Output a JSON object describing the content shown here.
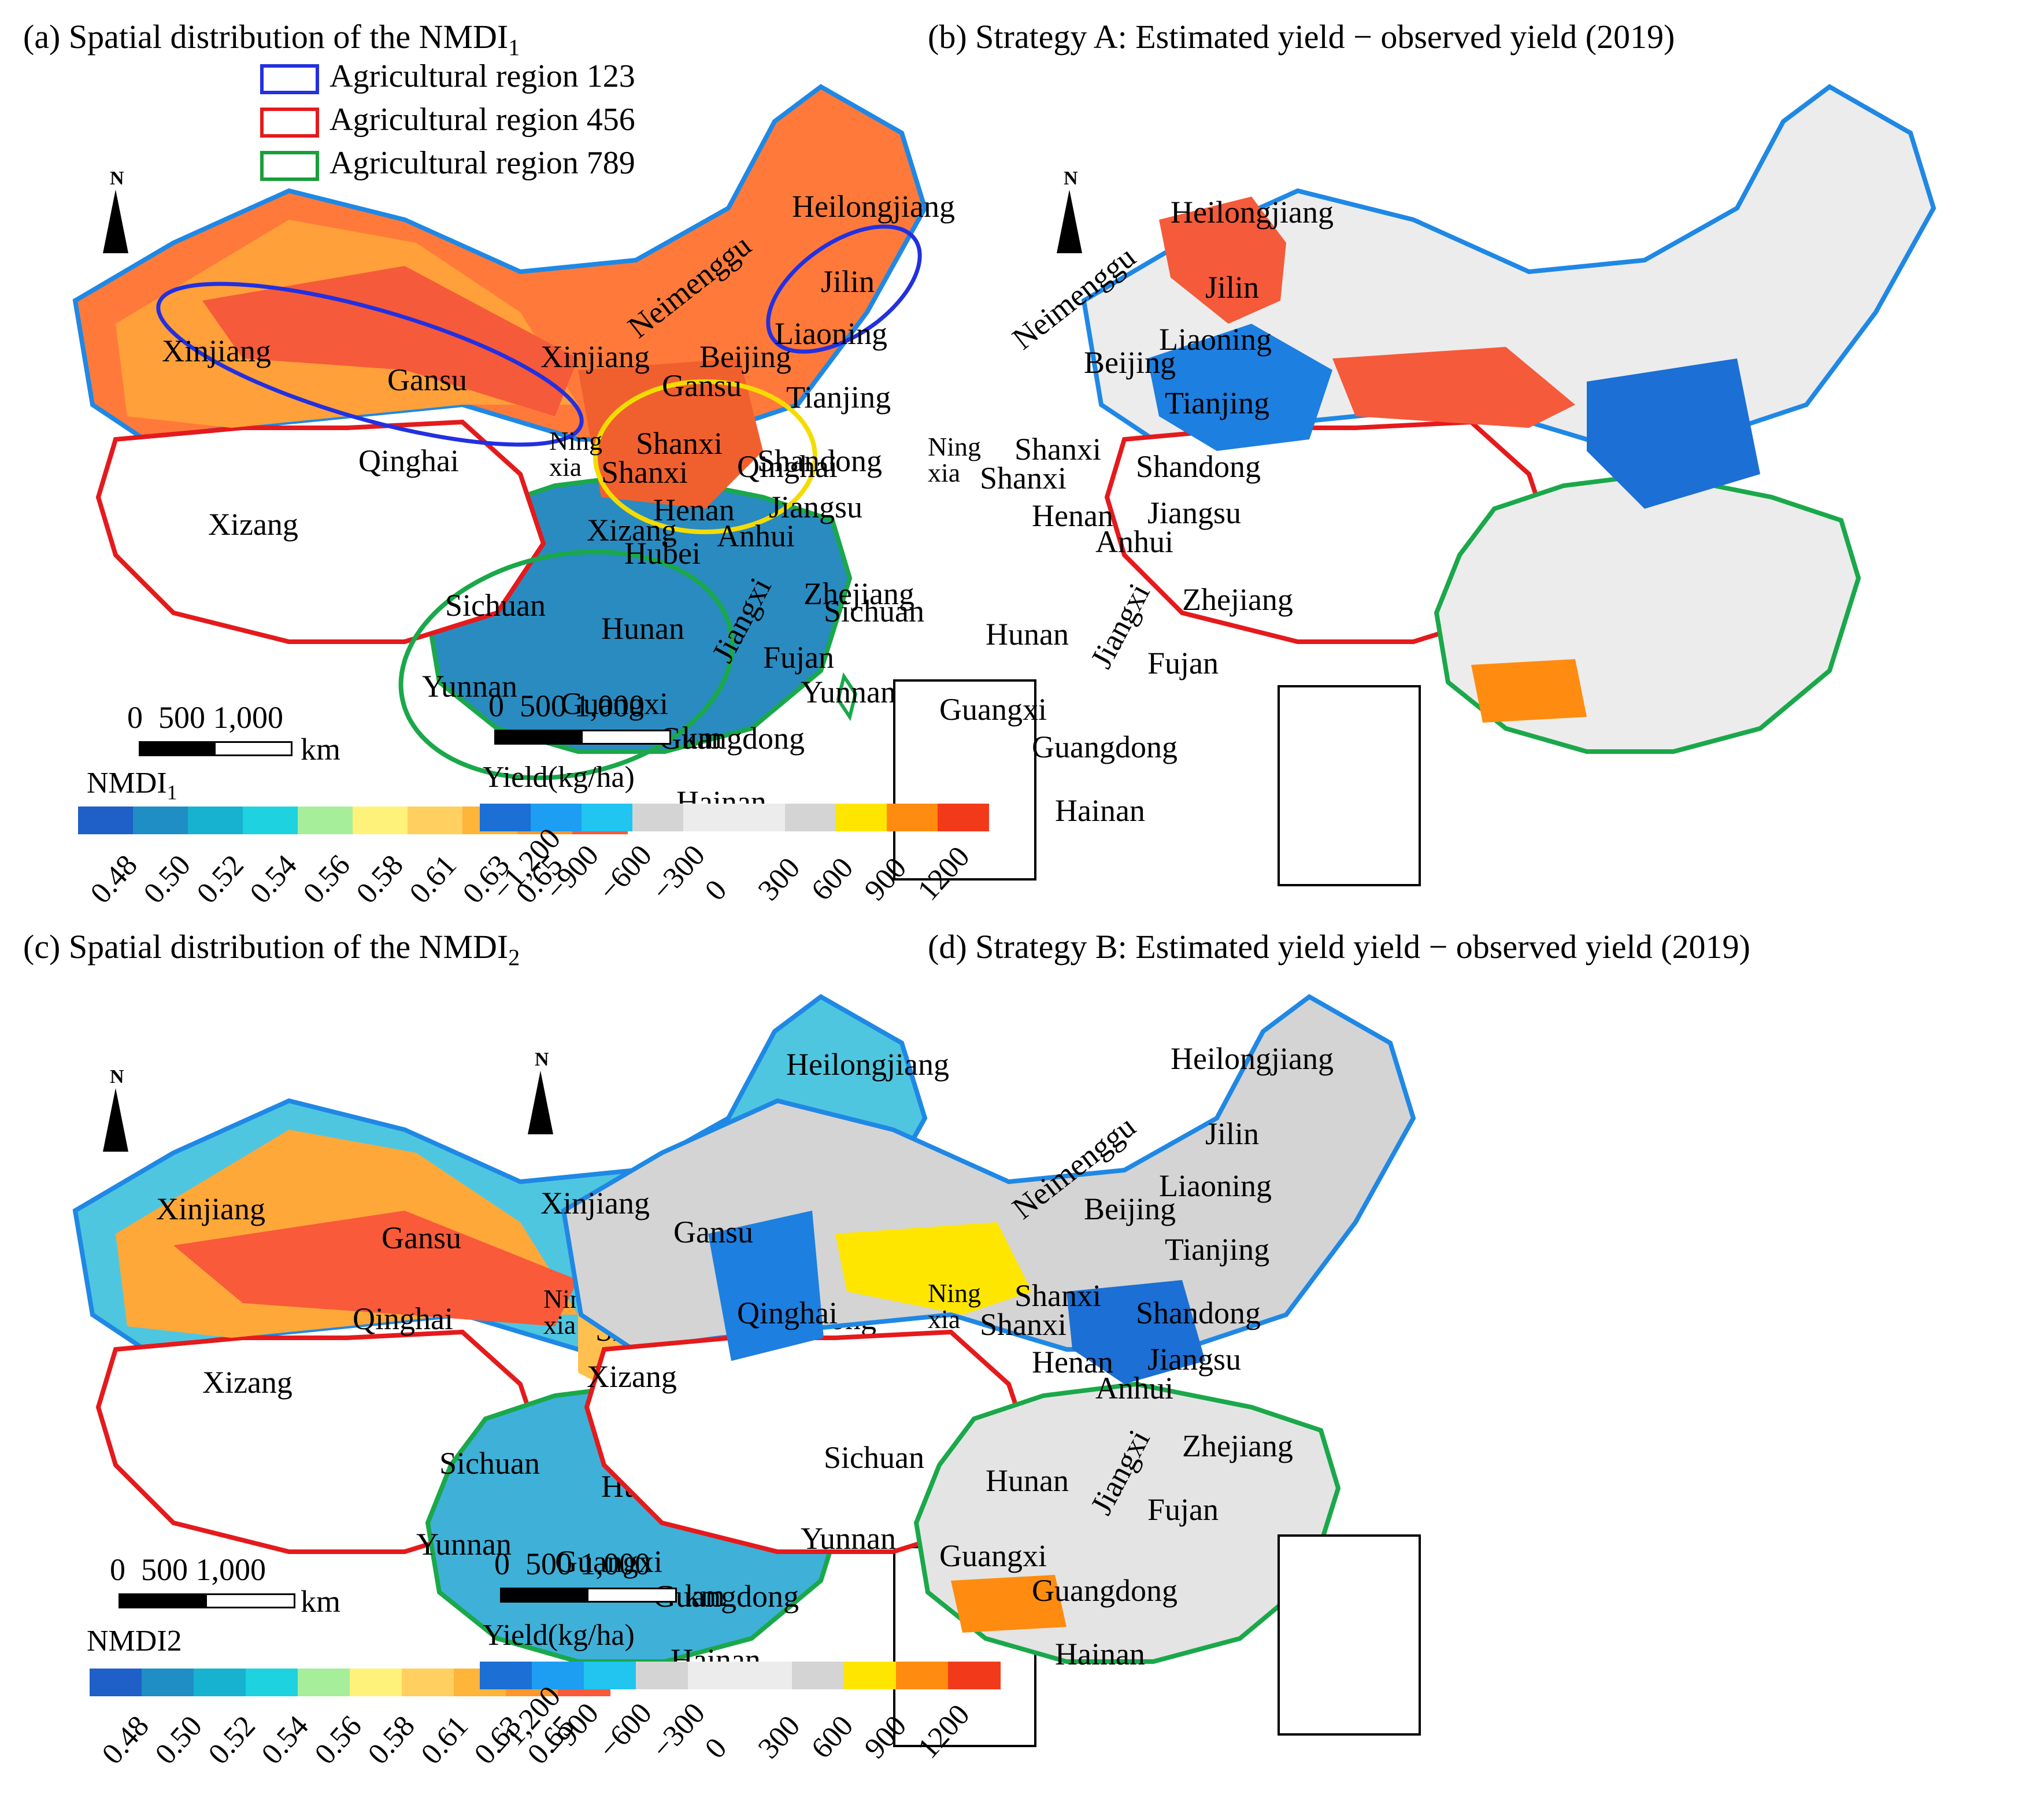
{
  "panels": {
    "a": {
      "title": "(a) Spatial distribution of  the NMDI",
      "title_sub": "1",
      "legend_title": "NMDI",
      "legend_title_sub": "1",
      "legend_ticks": [
        "0.48",
        "0.50",
        "0.52",
        "0.54",
        "0.56",
        "0.58",
        "0.61",
        "0.63",
        "0.65"
      ],
      "regions": [
        {
          "label": "Agricultural region 123",
          "color": "#1f4fe0"
        },
        {
          "label": "Agricultural region 456",
          "color": "#e41a1c"
        },
        {
          "label": "Agricultural region 789",
          "color": "#1a9e3a"
        }
      ]
    },
    "b": {
      "title": "(b) Strategy A: Estimated yield − observed yield (2019)",
      "legend_title": "Yield(kg/ha)",
      "legend_ticks": [
        "−1,200",
        "−900",
        "−600",
        "−300",
        "0",
        "300",
        "600",
        "900",
        "1200"
      ]
    },
    "c": {
      "title": "(c) Spatial distribution of  the NMDI",
      "title_sub": "2",
      "legend_title": "NMDI2",
      "legend_ticks": [
        "0.48",
        "0.50",
        "0.52",
        "0.54",
        "0.56",
        "0.58",
        "0.61",
        "0.63",
        "0.65"
      ]
    },
    "d": {
      "title": "(d) Strategy B: Estimated yield yield − observed yield (2019)",
      "legend_title": "Yield(kg/ha)",
      "legend_ticks": [
        "−1,200",
        "−900",
        "−600",
        "−300",
        "0",
        "300",
        "600",
        "900",
        "1200"
      ]
    }
  },
  "provinces": {
    "heilongjiang": "Heilongjiang",
    "jilin": "Jilin",
    "liaoning": "Liaoning",
    "neimenggu": "Neimenggu",
    "beijing": "Beijing",
    "tianjing": "Tianjing",
    "xinjiang": "Xinjiang",
    "gansu": "Gansu",
    "qinghai": "Qinghai",
    "xizang": "Xizang",
    "ning": "Ning",
    "xia": "xia",
    "shanxi1": "Shanxi",
    "shanxi2": "Shanxi",
    "shandong": "Shandong",
    "henan": "Henan",
    "jiangsu": "Jiangsu",
    "anhui": "Anhui",
    "hubei": "Hubei",
    "sichuan": "Sichuan",
    "hunan": "Hunan",
    "jiangxi": "Jiangxi",
    "zhejiang": "Zhejiang",
    "fujian": "Fujan",
    "yunnan": "Yunnan",
    "guangxi": "Guangxi",
    "guangdong": "Guangdong",
    "hainan": "Hainan"
  },
  "scale": {
    "zero": "0",
    "mid": "500",
    "max": "1,000",
    "unit": "km"
  },
  "north_label": "N",
  "colors": {
    "nmdi": [
      "#1f5fc8",
      "#1e8ec4",
      "#17b2d0",
      "#1ed2e0",
      "#a6ee9a",
      "#fff27a",
      "#ffd060",
      "#ffb43a",
      "#ff962c",
      "#f85a3a"
    ],
    "yield": [
      "#1c6fd4",
      "#1d9ef2",
      "#22c4f0",
      "#d4d4d4",
      "#ececec",
      "#ececec",
      "#d4d4d4",
      "#ffe600",
      "#ff8c10",
      "#f23a1a"
    ],
    "region_blue": "#1f88e5",
    "region_red": "#e41a1c",
    "region_green": "#1aa84a",
    "region_yellow": "#f5dc00",
    "ellipse_blue": "#2230e0"
  }
}
